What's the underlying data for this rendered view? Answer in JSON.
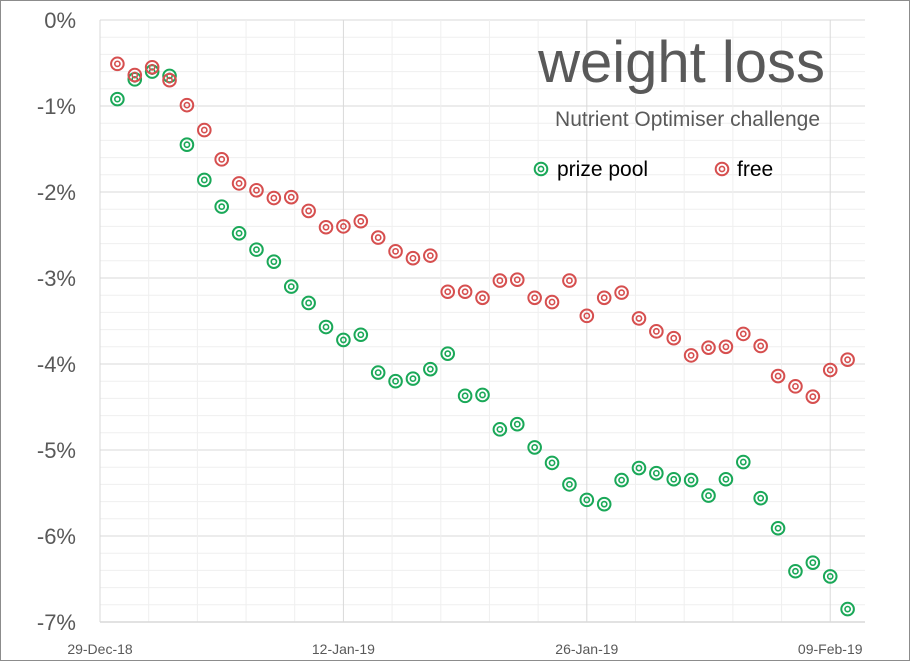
{
  "chart_data": {
    "type": "scatter",
    "title": "weight loss",
    "subtitle": "Nutrient Optimiser challenge",
    "xlabel": "",
    "ylabel": "",
    "x_tick_labels": [
      "29-Dec-18",
      "12-Jan-19",
      "26-Jan-19",
      "09-Feb-19"
    ],
    "x_tick_days": [
      0,
      14,
      28,
      42
    ],
    "x_unit": "days since 29-Dec-18",
    "xlim": [
      0,
      44
    ],
    "y_tick_labels": [
      "0%",
      "-1%",
      "-2%",
      "-3%",
      "-4%",
      "-5%",
      "-6%",
      "-7%"
    ],
    "y_tick_values": [
      0,
      -1,
      -2,
      -3,
      -4,
      -5,
      -6,
      -7
    ],
    "ylim": [
      -7,
      0
    ],
    "grid": true,
    "legend_position": "top-right",
    "series": [
      {
        "name": "prize pool",
        "color": "#1aa858",
        "x": [
          1,
          2,
          3,
          4,
          5,
          6,
          7,
          8,
          9,
          10,
          11,
          12,
          13,
          14,
          15,
          16,
          17,
          18,
          19,
          20,
          21,
          22,
          23,
          24,
          25,
          26,
          27,
          28,
          29,
          30,
          31,
          32,
          33,
          34,
          35,
          36,
          37,
          38,
          39,
          40,
          41,
          42,
          43
        ],
        "values": [
          -0.92,
          -0.69,
          -0.6,
          -0.65,
          -1.45,
          -1.86,
          -2.17,
          -2.48,
          -2.67,
          -2.81,
          -3.1,
          -3.29,
          -3.57,
          -3.72,
          -3.66,
          -4.1,
          -4.2,
          -4.17,
          -4.06,
          -3.88,
          -4.37,
          -4.36,
          -4.76,
          -4.7,
          -4.97,
          -5.15,
          -5.4,
          -5.58,
          -5.63,
          -5.35,
          -5.21,
          -5.27,
          -5.34,
          -5.35,
          -5.53,
          -5.34,
          -5.14,
          -5.56,
          -5.91,
          -6.41,
          -6.31,
          -6.47,
          -6.85
        ]
      },
      {
        "name": "free",
        "color": "#d64f4f",
        "x": [
          1,
          2,
          3,
          4,
          5,
          6,
          7,
          8,
          9,
          10,
          11,
          12,
          13,
          14,
          15,
          16,
          17,
          18,
          19,
          20,
          21,
          22,
          23,
          24,
          25,
          26,
          27,
          28,
          29,
          30,
          31,
          32,
          33,
          34,
          35,
          36,
          37,
          38,
          39,
          40,
          41,
          42,
          43
        ],
        "values": [
          -0.51,
          -0.64,
          -0.55,
          -0.7,
          -0.99,
          -1.28,
          -1.62,
          -1.9,
          -1.98,
          -2.07,
          -2.06,
          -2.22,
          -2.41,
          -2.4,
          -2.34,
          -2.53,
          -2.69,
          -2.77,
          -2.74,
          -3.16,
          -3.16,
          -3.23,
          -3.03,
          -3.02,
          -3.23,
          -3.28,
          -3.03,
          -3.44,
          -3.23,
          -3.17,
          -3.47,
          -3.62,
          -3.7,
          -3.9,
          -3.81,
          -3.8,
          -3.65,
          -3.79,
          -4.14,
          -4.26,
          -4.38,
          -4.07,
          -3.95
        ]
      }
    ]
  }
}
